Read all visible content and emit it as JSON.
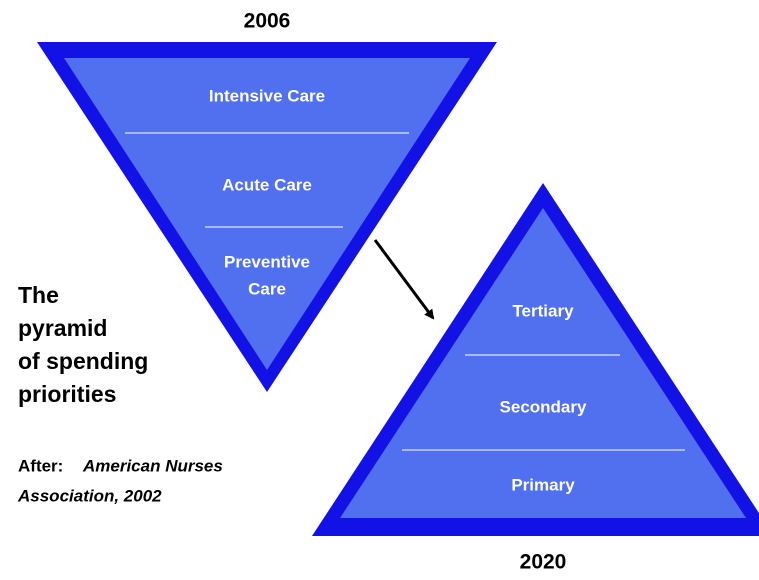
{
  "top_pyramid": {
    "year": "2006",
    "levels": [
      [
        "Intensive Care"
      ],
      [
        "Acute Care"
      ],
      [
        "Preventive",
        "Care"
      ]
    ]
  },
  "bottom_pyramid": {
    "year": "2020",
    "levels": [
      [
        "Tertiary"
      ],
      [
        "Secondary"
      ],
      [
        "Primary"
      ]
    ]
  },
  "caption": {
    "title_lines": [
      "The",
      "pyramid",
      "of spending",
      "priorities"
    ],
    "source_label": "After:",
    "source_lines": [
      "American Nurses",
      "Association, 2002"
    ]
  }
}
